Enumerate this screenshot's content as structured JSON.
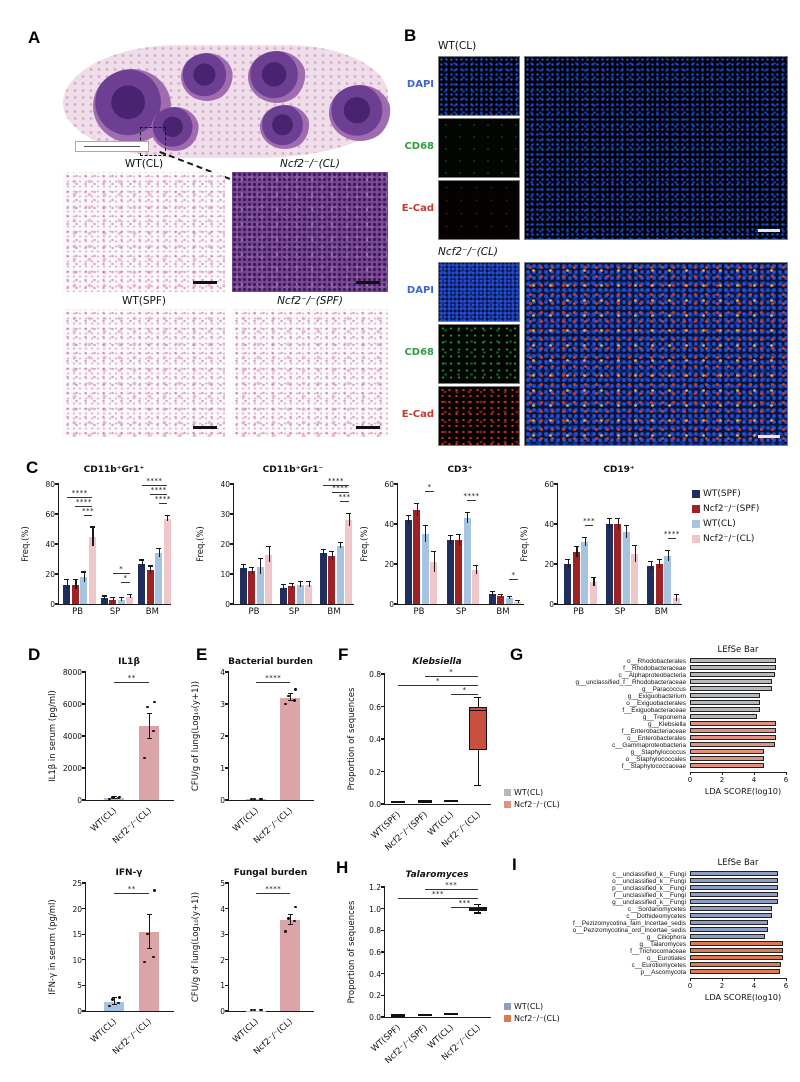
{
  "panels": {
    "a": {
      "letter": "A",
      "label_wt_cl": "WT(CL)",
      "label_ncf2_cl": "Ncf2⁻/⁻(CL)",
      "label_wt_spf": "WT(SPF)",
      "label_ncf2_spf": "Ncf2⁻/⁻(SPF)"
    },
    "b": {
      "letter": "B",
      "group1_label": "WT(CL)",
      "group2_label": "Ncf2⁻/⁻(CL)",
      "ch_dapi": "DAPI",
      "ch_cd68": "CD68",
      "ch_ecad": "E-Cad",
      "ch_colors": {
        "dapi": "#3f66cf",
        "cd68": "#2e9e44",
        "ecad": "#c23b2e"
      }
    },
    "c": {
      "letter": "C"
    },
    "d": {
      "letter": "D"
    },
    "e": {
      "letter": "E"
    },
    "f": {
      "letter": "F"
    },
    "g": {
      "letter": "G"
    },
    "h": {
      "letter": "H"
    },
    "i": {
      "letter": "I"
    }
  },
  "legends": {
    "c": {
      "items": [
        {
          "label": "WT(SPF)",
          "color": "#1f2e5c"
        },
        {
          "label": "Ncf2⁻/⁻(SPF)",
          "color": "#9e2123"
        },
        {
          "label": "WT(CL)",
          "color": "#a7c3e2"
        },
        {
          "label": "Ncf2⁻/⁻(CL)",
          "color": "#efc7ca"
        }
      ]
    },
    "g": {
      "items": [
        {
          "label": "WT(CL)",
          "color": "#b5b9bb"
        },
        {
          "label": "Ncf2⁻/⁻(CL)",
          "color": "#e2907f"
        }
      ]
    },
    "i": {
      "items": [
        {
          "label": "WT(CL)",
          "color": "#8d9dc6"
        },
        {
          "label": "Ncf2⁻/⁻(CL)",
          "color": "#de7a52"
        }
      ]
    }
  },
  "chart_data": [
    {
      "id": "c_cd11b_pos",
      "type": "grouped_bar",
      "title": "CD11b⁺Gr1⁺",
      "ylabel": "Freq.(%)",
      "ylim": [
        0,
        80
      ],
      "yticks": [
        0,
        20,
        40,
        60,
        80
      ],
      "categories": [
        "PB",
        "SP",
        "BM"
      ],
      "series": [
        {
          "name": "WT(SPF)",
          "color": "#1f2e5c",
          "values": [
            13,
            4,
            27
          ],
          "errors": [
            3,
            1,
            2
          ]
        },
        {
          "name": "Ncf2-/-(SPF)",
          "color": "#9e2123",
          "values": [
            13,
            3,
            23
          ],
          "errors": [
            3,
            0.8,
            2
          ]
        },
        {
          "name": "WT(CL)",
          "color": "#a7c3e2",
          "values": [
            18,
            3,
            34
          ],
          "errors": [
            3,
            0.7,
            2.5
          ]
        },
        {
          "name": "Ncf2-/-(CL)",
          "color": "#efc7ca",
          "values": [
            45,
            5,
            57
          ],
          "errors": [
            6,
            1.2,
            1.5
          ]
        }
      ],
      "sig": [
        [
          [
            0,
            3,
            "****"
          ],
          [
            1,
            3,
            "****"
          ],
          [
            2,
            3,
            "***"
          ]
        ],
        [
          [
            1,
            3,
            "*"
          ],
          [
            2,
            3,
            "*"
          ]
        ],
        [
          [
            0,
            3,
            "****"
          ],
          [
            1,
            3,
            "****"
          ],
          [
            2,
            3,
            "****"
          ]
        ]
      ]
    },
    {
      "id": "c_cd11b_neg",
      "type": "grouped_bar",
      "title": "CD11b⁺Gr1⁻",
      "ylabel": "Freq.(%)",
      "ylim": [
        0,
        40
      ],
      "yticks": [
        0,
        10,
        20,
        30,
        40
      ],
      "categories": [
        "PB",
        "SP",
        "BM"
      ],
      "series": [
        {
          "name": "WT(SPF)",
          "color": "#1f2e5c",
          "values": [
            12,
            5.5,
            17
          ],
          "errors": [
            1,
            0.7,
            1
          ]
        },
        {
          "name": "Ncf2-/-(SPF)",
          "color": "#9e2123",
          "values": [
            11,
            6,
            16
          ],
          "errors": [
            1,
            0.6,
            1.2
          ]
        },
        {
          "name": "WT(CL)",
          "color": "#a7c3e2",
          "values": [
            12.5,
            6.5,
            19.5
          ],
          "errors": [
            2.5,
            0.8,
            0.8
          ]
        },
        {
          "name": "Ncf2-/-(CL)",
          "color": "#efc7ca",
          "values": [
            16.5,
            6.5,
            28
          ],
          "errors": [
            2.5,
            0.8,
            2
          ]
        }
      ],
      "sig": [
        [],
        [],
        [
          [
            0,
            3,
            "****"
          ],
          [
            1,
            3,
            "****"
          ],
          [
            2,
            3,
            "***"
          ]
        ]
      ]
    },
    {
      "id": "c_cd3",
      "type": "grouped_bar",
      "title": "CD3⁺",
      "ylabel": "Freq.(%)",
      "ylim": [
        0,
        60
      ],
      "yticks": [
        0,
        20,
        40,
        60
      ],
      "categories": [
        "PB",
        "SP",
        "BM"
      ],
      "series": [
        {
          "name": "WT(SPF)",
          "color": "#1f2e5c",
          "values": [
            42,
            32,
            5
          ],
          "errors": [
            2,
            2,
            0.8
          ]
        },
        {
          "name": "Ncf2-/-(SPF)",
          "color": "#9e2123",
          "values": [
            47,
            32,
            4
          ],
          "errors": [
            3,
            2.5,
            0.5
          ]
        },
        {
          "name": "WT(CL)",
          "color": "#a7c3e2",
          "values": [
            35,
            43,
            3
          ],
          "errors": [
            4,
            2.5,
            0.7
          ]
        },
        {
          "name": "Ncf2-/-(CL)",
          "color": "#efc7ca",
          "values": [
            21,
            17,
            1
          ],
          "errors": [
            5,
            2,
            0.4
          ]
        }
      ],
      "sig": [
        [
          [
            2,
            3,
            "*"
          ]
        ],
        [
          [
            2,
            3,
            "****"
          ]
        ],
        [
          [
            2,
            3,
            "*"
          ]
        ]
      ]
    },
    {
      "id": "c_cd19",
      "type": "grouped_bar",
      "title": "CD19⁺",
      "ylabel": "Freq.(%)",
      "ylim": [
        0,
        60
      ],
      "yticks": [
        0,
        20,
        40,
        60
      ],
      "categories": [
        "PB",
        "SP",
        "BM"
      ],
      "series": [
        {
          "name": "WT(SPF)",
          "color": "#1f2e5c",
          "values": [
            20,
            40,
            19
          ],
          "errors": [
            2,
            2.5,
            2
          ]
        },
        {
          "name": "Ncf2-/-(SPF)",
          "color": "#9e2123",
          "values": [
            26,
            40,
            20
          ],
          "errors": [
            2.5,
            2.5,
            2
          ]
        },
        {
          "name": "WT(CL)",
          "color": "#a7c3e2",
          "values": [
            31,
            36,
            24
          ],
          "errors": [
            2,
            3,
            2.5
          ]
        },
        {
          "name": "Ncf2-/-(CL)",
          "color": "#efc7ca",
          "values": [
            11,
            25,
            3
          ],
          "errors": [
            2,
            4,
            1.5
          ]
        }
      ],
      "sig": [
        [
          [
            2,
            3,
            "***"
          ]
        ],
        [],
        [
          [
            2,
            3,
            "****"
          ]
        ]
      ]
    },
    {
      "id": "il1b",
      "type": "bar",
      "title": "IL1β",
      "ylabel": "IL1β in serum (pg/ml)",
      "ylim": [
        0,
        8000
      ],
      "yticks": [
        0,
        2000,
        4000,
        6000,
        8000
      ],
      "categories": [
        "WT(CL)",
        "Ncf2⁻/⁻(CL)"
      ],
      "values": [
        100,
        4600
      ],
      "errors": [
        60,
        800
      ],
      "colors": [
        "#a7c3e2",
        "#dba4a9"
      ],
      "points": [
        [
          60,
          100,
          150,
          190
        ],
        [
          2600,
          4300,
          5800,
          6100
        ]
      ],
      "sig": "**"
    },
    {
      "id": "ifng",
      "type": "bar",
      "title": "IFN-γ",
      "ylabel": "IFN-γ in serum (pg/ml)",
      "ylim": [
        0,
        25
      ],
      "yticks": [
        0,
        5,
        10,
        15,
        20,
        25
      ],
      "categories": [
        "WT(CL)",
        "Ncf2⁻/⁻(CL)"
      ],
      "values": [
        1.8,
        15.4
      ],
      "errors": [
        0.7,
        3.3
      ],
      "colors": [
        "#a7c3e2",
        "#dba4a9"
      ],
      "points": [
        [
          1,
          1.5,
          2.2,
          2.6
        ],
        [
          9.5,
          10.5,
          15,
          23.5
        ]
      ],
      "sig": "**"
    },
    {
      "id": "bact",
      "type": "bar",
      "title": "Bacterial burden",
      "ylabel": "CFU/g of lung(Log₁₀(y+1))",
      "ylim": [
        0,
        4
      ],
      "yticks": [
        0,
        1,
        2,
        3,
        4
      ],
      "categories": [
        "WT(CL)",
        "Ncf2⁻/⁻(CL)"
      ],
      "values": [
        0.02,
        3.2
      ],
      "errors": [
        0,
        0.12
      ],
      "colors": [
        "#a7c3e2",
        "#dba4a9"
      ],
      "points": [
        [
          0,
          0,
          0,
          0
        ],
        [
          3.0,
          3.1,
          3.25,
          3.45
        ]
      ],
      "sig": "****"
    },
    {
      "id": "fungal",
      "type": "bar",
      "title": "Fungal burden",
      "ylabel": "CFU/g of lung(Log₁₀(y+1))",
      "ylim": [
        0,
        5
      ],
      "yticks": [
        0,
        1,
        2,
        3,
        4,
        5
      ],
      "categories": [
        "WT(CL)",
        "Ncf2⁻/⁻(CL)"
      ],
      "values": [
        0.02,
        3.55
      ],
      "errors": [
        0,
        0.2
      ],
      "colors": [
        "#a7c3e2",
        "#dba4a9"
      ],
      "points": [
        [
          0,
          0,
          0,
          0
        ],
        [
          3.1,
          3.5,
          3.6,
          4.05
        ]
      ],
      "sig": "****"
    },
    {
      "id": "klebsiella",
      "type": "box",
      "title": "Klebsiella",
      "italic": true,
      "ylabel": "Proportion of sequences",
      "ylim": [
        0,
        0.8
      ],
      "yticks": [
        0,
        0.2,
        0.4,
        0.6,
        0.8
      ],
      "ytick_labels": [
        "0.0",
        "0.2",
        "0.4",
        "0.6",
        "0.8"
      ],
      "categories": [
        "WT(SPF)",
        "Ncf2⁻/⁻(SPF)",
        "WT(CL)",
        "Ncf2⁻/⁻(CL)"
      ],
      "box_color": "#c94f3f",
      "boxes": [
        {
          "median": 0.004
        },
        {
          "median": 0.008
        },
        {
          "median": 0.012
        },
        {
          "lo": 0.11,
          "q1": 0.33,
          "median": 0.57,
          "q3": 0.6,
          "hi": 0.65
        }
      ],
      "sig": [
        [
          1,
          3,
          "*"
        ],
        [
          0,
          3,
          "*"
        ],
        [
          2,
          3,
          "*"
        ]
      ]
    },
    {
      "id": "talaromyces",
      "type": "box",
      "title": "Talaromyces",
      "italic": true,
      "ylabel": "Proportion of sequences",
      "ylim": [
        0,
        1.2
      ],
      "yticks": [
        0,
        0.2,
        0.4,
        0.6,
        0.8,
        1.0,
        1.2
      ],
      "ytick_labels": [
        "0.0",
        "0.2",
        "0.4",
        "0.6",
        "0.8",
        "1.0",
        "1.2"
      ],
      "categories": [
        "WT(SPF)",
        "Ncf2⁻/⁻(SPF)",
        "WT(CL)",
        "Ncf2⁻/⁻(CL)"
      ],
      "box_color": "#1a1a1a",
      "boxes": [
        {
          "median": 0.004
        },
        {
          "median": 0.006
        },
        {
          "median": 0.018
        },
        {
          "lo": 0.955,
          "q1": 0.98,
          "median": 1.0,
          "q3": 1.015,
          "hi": 1.03
        }
      ],
      "sig": [
        [
          1,
          3,
          "***"
        ],
        [
          0,
          3,
          "***"
        ],
        [
          2,
          3,
          "***"
        ]
      ]
    },
    {
      "id": "lefse_g",
      "type": "lefse_bar",
      "title": "LEfSe Bar",
      "xlabel": "LDA SCORE(log10)",
      "xlim": [
        0,
        6
      ],
      "xticks": [
        0,
        2,
        4,
        6
      ],
      "colors": {
        "wt": "#b5b9bb",
        "ncf2": "#e2907f"
      },
      "items": [
        {
          "label": "o__Rhodobacterales",
          "value": 5.4,
          "group": "wt"
        },
        {
          "label": "f__Rhodobacteraceae",
          "value": 5.4,
          "group": "wt"
        },
        {
          "label": "c__Alphaproteobacteria",
          "value": 5.3,
          "group": "wt"
        },
        {
          "label": "g__unclassified_f__Rhodobacteraceae",
          "value": 5.1,
          "group": "wt"
        },
        {
          "label": "g__Paracoccus",
          "value": 5.1,
          "group": "wt"
        },
        {
          "label": "g__Exiguobacterium",
          "value": 4.4,
          "group": "wt"
        },
        {
          "label": "o__Exiguobacterales",
          "value": 4.4,
          "group": "wt"
        },
        {
          "label": "f__Exiguobacteraceae",
          "value": 4.4,
          "group": "wt"
        },
        {
          "label": "g__Treponema",
          "value": 4.2,
          "group": "wt"
        },
        {
          "label": "g__Klebsiella",
          "value": 5.4,
          "group": "ncf2"
        },
        {
          "label": "f__Enterobacteriaceae",
          "value": 5.4,
          "group": "ncf2"
        },
        {
          "label": "o__Enterobacterales",
          "value": 5.4,
          "group": "ncf2"
        },
        {
          "label": "c__Gammaproteobacteria",
          "value": 5.3,
          "group": "ncf2"
        },
        {
          "label": "g__Staphylococcus",
          "value": 4.6,
          "group": "ncf2"
        },
        {
          "label": "o__Staphylococcales",
          "value": 4.6,
          "group": "ncf2"
        },
        {
          "label": "f__Staphylococcaceae",
          "value": 4.6,
          "group": "ncf2"
        }
      ]
    },
    {
      "id": "lefse_i",
      "type": "lefse_bar",
      "title": "LEfSe Bar",
      "xlabel": "LDA SCORE(log10)",
      "xlim": [
        0,
        6
      ],
      "xticks": [
        0,
        2,
        4,
        6
      ],
      "colors": {
        "wt": "#8d9dc6",
        "ncf2": "#de7a52"
      },
      "items": [
        {
          "label": "c__unclassified_k__Fungi",
          "value": 5.5,
          "group": "wt"
        },
        {
          "label": "o__unclassified_k__Fungi",
          "value": 5.5,
          "group": "wt"
        },
        {
          "label": "p__unclassified_k__Fungi",
          "value": 5.5,
          "group": "wt"
        },
        {
          "label": "f__unclassified_k__Fungi",
          "value": 5.5,
          "group": "wt"
        },
        {
          "label": "g__unclassified_k__Fungi",
          "value": 5.5,
          "group": "wt"
        },
        {
          "label": "c__Sordariomycetes",
          "value": 5.1,
          "group": "wt"
        },
        {
          "label": "c__Dothideomycetes",
          "value": 5.1,
          "group": "wt"
        },
        {
          "label": "f__Pezizomycotina_fam_Incertae_sedis",
          "value": 4.9,
          "group": "wt"
        },
        {
          "label": "o__Pezizomycotina_ord_Incertae_sedis",
          "value": 4.9,
          "group": "wt"
        },
        {
          "label": "g__Ciliophora",
          "value": 4.7,
          "group": "wt"
        },
        {
          "label": "g__Talaromyces",
          "value": 5.8,
          "group": "ncf2"
        },
        {
          "label": "f__Trichocomaceae",
          "value": 5.8,
          "group": "ncf2"
        },
        {
          "label": "o__Eurotiales",
          "value": 5.8,
          "group": "ncf2"
        },
        {
          "label": "c__Eurotiomycetes",
          "value": 5.7,
          "group": "ncf2"
        },
        {
          "label": "p__Ascomycota",
          "value": 5.6,
          "group": "ncf2"
        }
      ]
    }
  ]
}
